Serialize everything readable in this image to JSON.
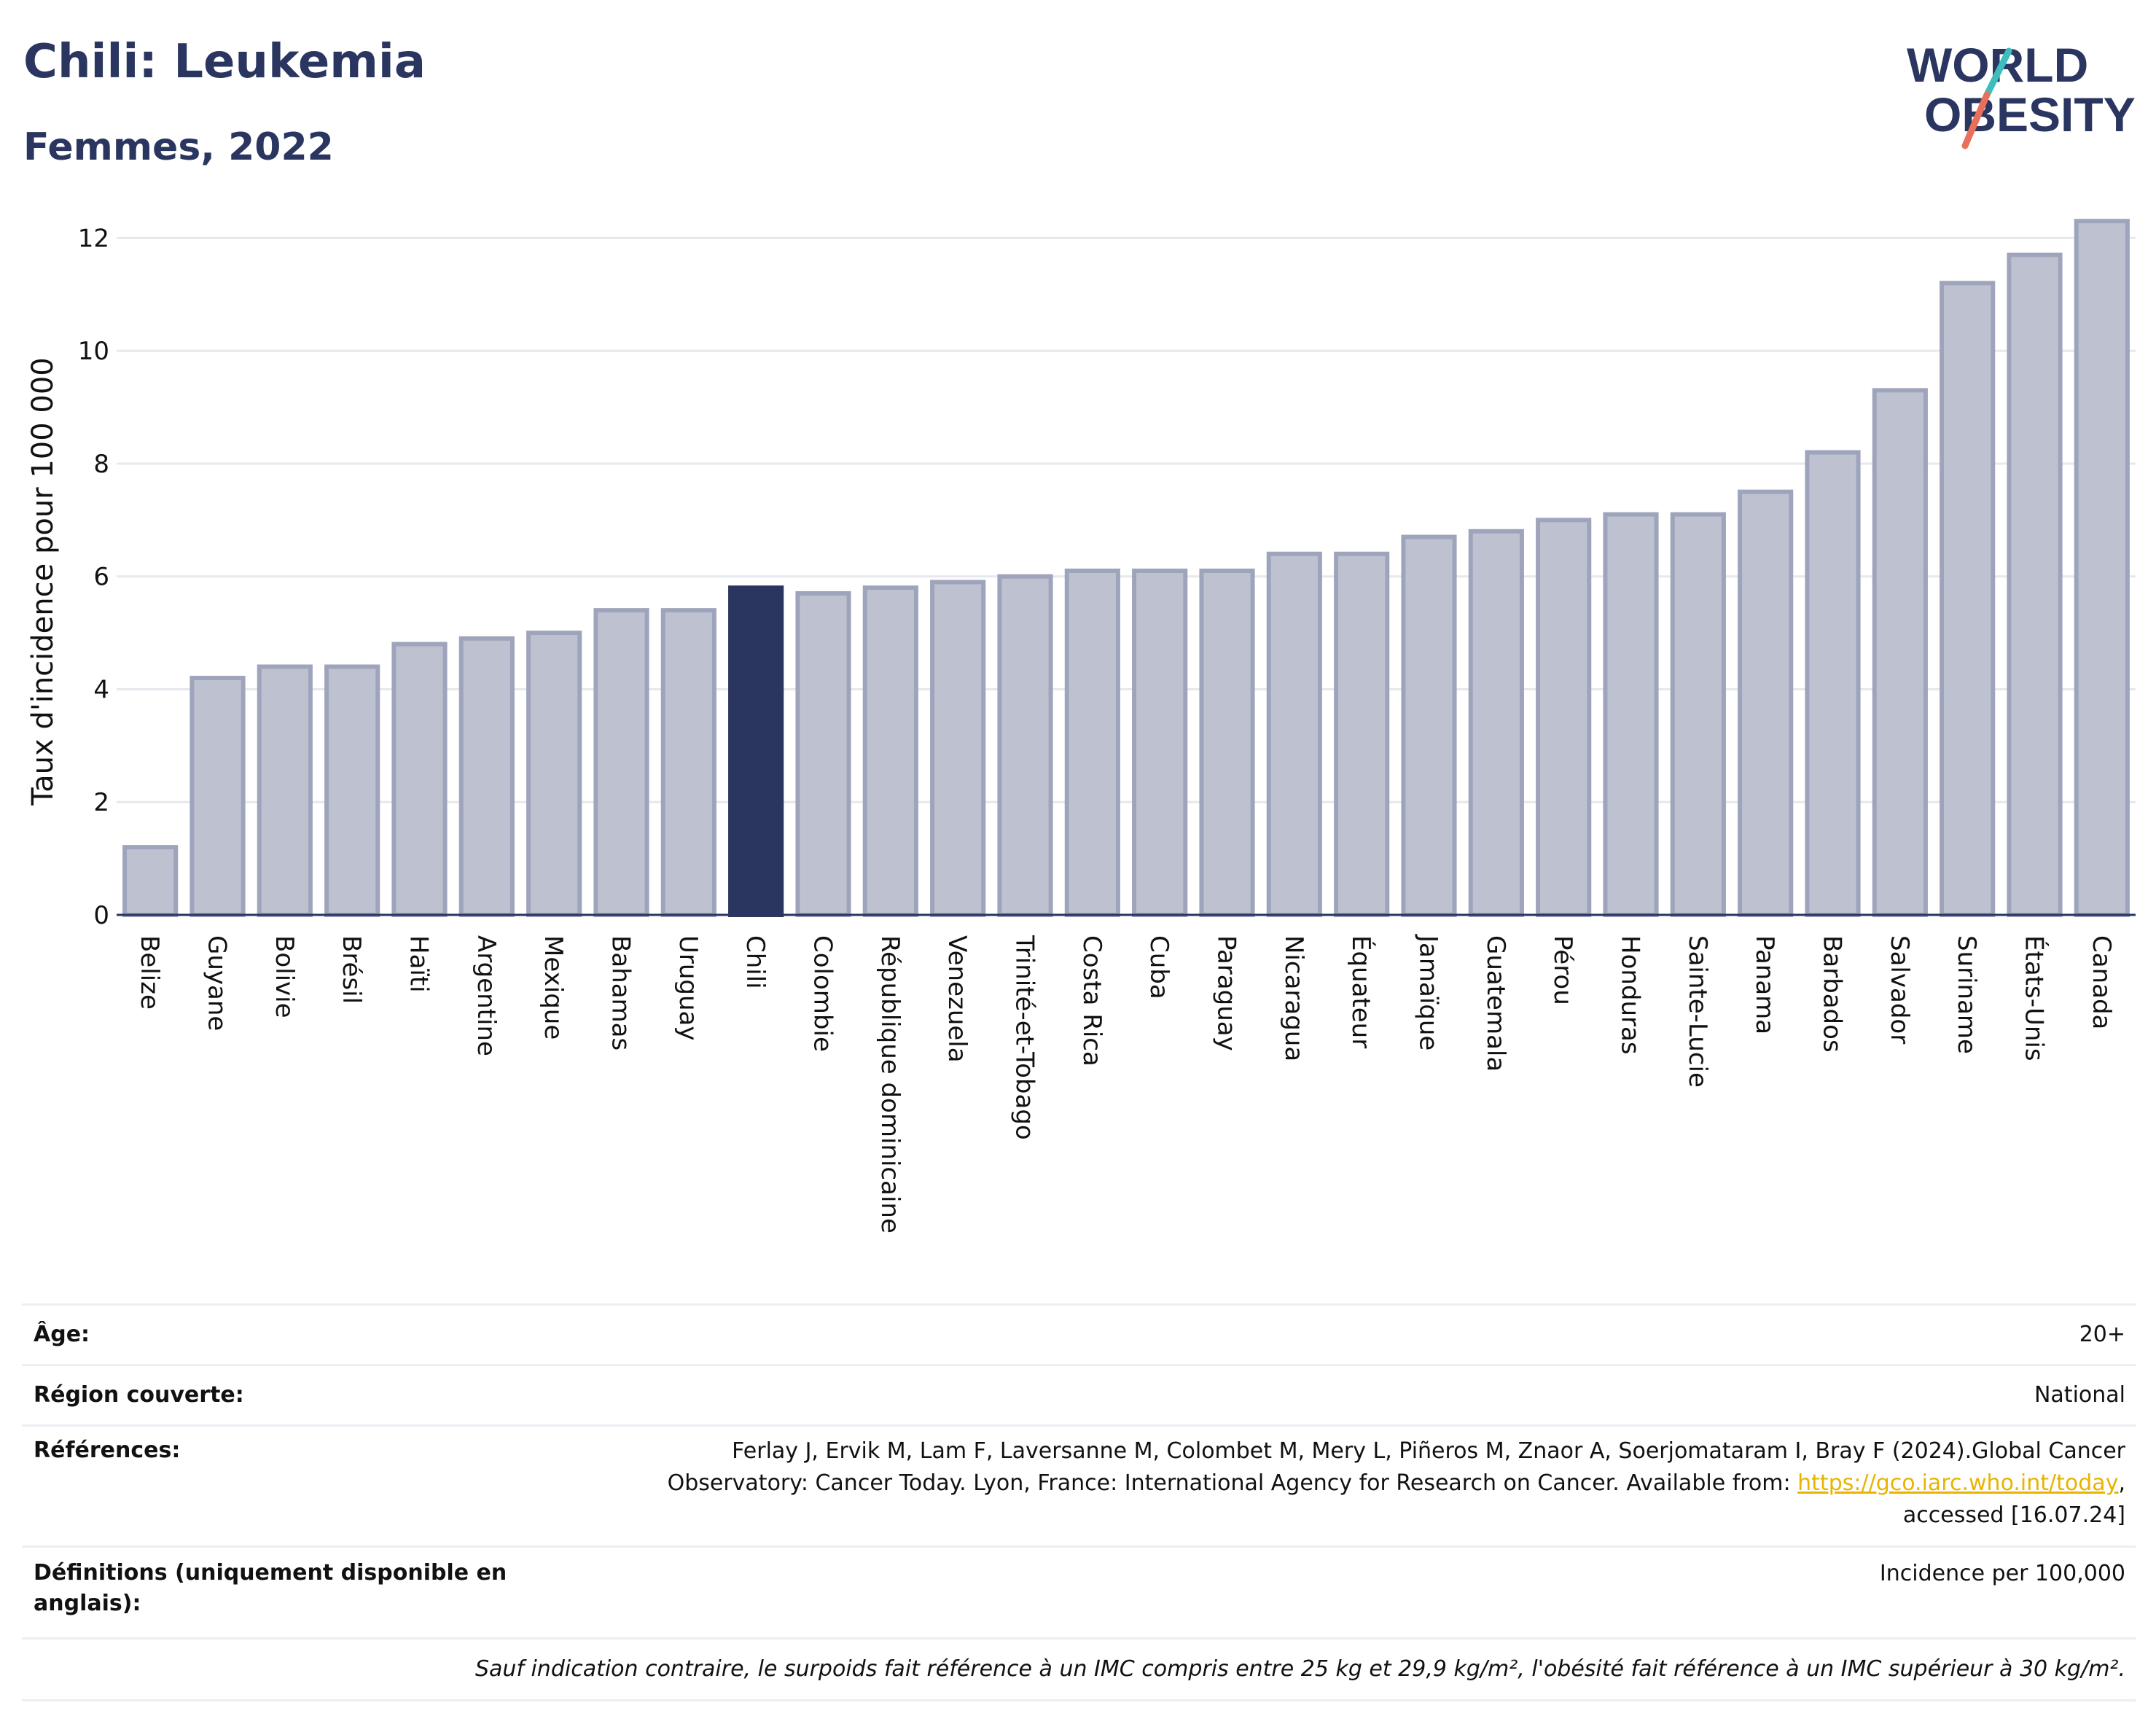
{
  "header": {
    "title": "Chili: Leukemia",
    "subtitle": "Femmes, 2022"
  },
  "logo": {
    "line1": "WORLD",
    "line2": "OBESITY",
    "accent_teal": "#3dbdbd",
    "accent_coral": "#e8705a",
    "text_color": "#2a3560"
  },
  "chart_data": {
    "type": "bar",
    "ylabel": "Taux d'incidence pour 100 000",
    "ylim": [
      0,
      12.6
    ],
    "yticks": [
      0,
      2,
      4,
      6,
      8,
      10,
      12
    ],
    "grid": true,
    "highlight": "Chili",
    "colors": {
      "bar": "#bec2d0",
      "bar_edge": "#9ea4bb",
      "highlight": "#2a3560"
    },
    "categories": [
      "Belize",
      "Guyane",
      "Bolivie",
      "Brésil",
      "Haïti",
      "Argentine",
      "Mexique",
      "Bahamas",
      "Uruguay",
      "Chili",
      "Colombie",
      "République dominicaine",
      "Venezuela",
      "Trinité-et-Tobago",
      "Costa Rica",
      "Cuba",
      "Paraguay",
      "Nicaragua",
      "Équateur",
      "Jamaïque",
      "Guatemala",
      "Pérou",
      "Honduras",
      "Sainte-Lucie",
      "Panama",
      "Barbados",
      "Salvador",
      "Suriname",
      "États-Unis",
      "Canada"
    ],
    "values": [
      1.2,
      4.2,
      4.4,
      4.4,
      4.8,
      4.9,
      5.0,
      5.4,
      5.4,
      5.8,
      5.7,
      5.8,
      5.9,
      6.0,
      6.1,
      6.1,
      6.1,
      6.4,
      6.4,
      6.7,
      6.8,
      7.0,
      7.1,
      7.1,
      7.5,
      8.2,
      9.3,
      11.2,
      11.7,
      12.3
    ]
  },
  "info": {
    "age_label": "Âge:",
    "age_value": "20+",
    "region_label": "Région couverte:",
    "region_value": "National",
    "ref_label": "Références:",
    "ref_line1": "Ferlay J, Ervik M, Lam F, Laversanne M, Colombet M, Mery L, Piñeros M, Znaor A, Soerjomataram I, Bray F (2024).Global Cancer",
    "ref_line2": "Observatory: Cancer Today. Lyon, France: International Agency for Research on Cancer. Available from:",
    "ref_link": "https://gco.iarc.who.int/today",
    "ref_line3": "accessed [16.07.24]",
    "def_label": "Définitions (uniquement disponible en anglais):",
    "def_value": "Incidence per 100,000",
    "note": "Sauf indication contraire, le surpoids fait référence à un IMC compris entre 25 kg et 29,9 kg/m², l'obésité fait référence à un IMC supérieur à 30 kg/m²."
  }
}
